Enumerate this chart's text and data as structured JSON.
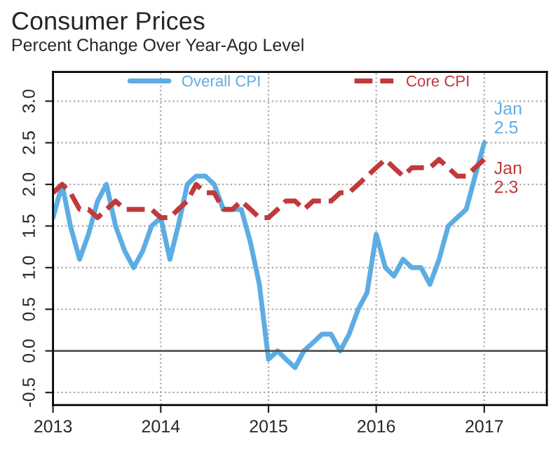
{
  "chart_data": {
    "type": "line",
    "title": "Consumer Prices",
    "subtitle": "Percent Change Over Year-Ago Level",
    "x": [
      "2013-01",
      "2013-02",
      "2013-03",
      "2013-04",
      "2013-05",
      "2013-06",
      "2013-07",
      "2013-08",
      "2013-09",
      "2013-10",
      "2013-11",
      "2013-12",
      "2014-01",
      "2014-02",
      "2014-03",
      "2014-04",
      "2014-05",
      "2014-06",
      "2014-07",
      "2014-08",
      "2014-09",
      "2014-10",
      "2014-11",
      "2014-12",
      "2015-01",
      "2015-02",
      "2015-03",
      "2015-04",
      "2015-05",
      "2015-06",
      "2015-07",
      "2015-08",
      "2015-09",
      "2015-10",
      "2015-11",
      "2015-12",
      "2016-01",
      "2016-02",
      "2016-03",
      "2016-04",
      "2016-05",
      "2016-06",
      "2016-07",
      "2016-08",
      "2016-09",
      "2016-10",
      "2016-11",
      "2016-12",
      "2017-01"
    ],
    "series": [
      {
        "name": "Overall CPI",
        "color": "#5dade2",
        "line_style": "solid",
        "values": [
          1.6,
          2.0,
          1.5,
          1.1,
          1.4,
          1.8,
          2.0,
          1.5,
          1.2,
          1.0,
          1.2,
          1.5,
          1.6,
          1.1,
          1.5,
          2.0,
          2.1,
          2.1,
          2.0,
          1.7,
          1.7,
          1.7,
          1.3,
          0.8,
          -0.1,
          0.0,
          -0.1,
          -0.2,
          0.0,
          0.1,
          0.2,
          0.2,
          0.0,
          0.2,
          0.5,
          0.7,
          1.4,
          1.0,
          0.9,
          1.1,
          1.0,
          1.0,
          0.8,
          1.1,
          1.5,
          1.6,
          1.7,
          2.1,
          2.5
        ]
      },
      {
        "name": "Core CPI",
        "color": "#c0393b",
        "line_style": "dashed",
        "values": [
          1.9,
          2.0,
          1.9,
          1.7,
          1.7,
          1.6,
          1.7,
          1.8,
          1.7,
          1.7,
          1.7,
          1.7,
          1.6,
          1.6,
          1.7,
          1.8,
          2.0,
          1.9,
          1.9,
          1.7,
          1.7,
          1.8,
          1.7,
          1.6,
          1.6,
          1.7,
          1.8,
          1.8,
          1.7,
          1.8,
          1.8,
          1.8,
          1.9,
          1.9,
          2.0,
          2.1,
          2.2,
          2.3,
          2.2,
          2.1,
          2.2,
          2.2,
          2.2,
          2.3,
          2.2,
          2.1,
          2.1,
          2.2,
          2.3
        ]
      }
    ],
    "annotations": [
      {
        "text": "Jan\n2.5",
        "x": "2017-01",
        "y": 2.5
      },
      {
        "text": "Jan\n2.3",
        "x": "2017-01",
        "y": 2.3
      }
    ],
    "xlim": [
      "2013-01",
      "2017-08"
    ],
    "xticks": [
      {
        "value": "2013-01",
        "label": "2013"
      },
      {
        "value": "2014-01",
        "label": "2014"
      },
      {
        "value": "2015-01",
        "label": "2015"
      },
      {
        "value": "2016-01",
        "label": "2016"
      },
      {
        "value": "2017-01",
        "label": "2017"
      }
    ],
    "ylim": [
      -0.65,
      3.35
    ],
    "yticks": [
      {
        "value": -0.5,
        "label": "-0.5"
      },
      {
        "value": 0,
        "label": "0.0"
      },
      {
        "value": 0.5,
        "label": "0.5"
      },
      {
        "value": 1,
        "label": "1.0"
      },
      {
        "value": 1.5,
        "label": "1.5"
      },
      {
        "value": 2,
        "label": "2.0"
      },
      {
        "value": 2.5,
        "label": "2.5"
      },
      {
        "value": 3,
        "label": "3.0"
      }
    ],
    "ref_lines": [
      {
        "axis": "y",
        "value": 0,
        "color": "#555555"
      }
    ],
    "grid": true,
    "legend": "top"
  }
}
